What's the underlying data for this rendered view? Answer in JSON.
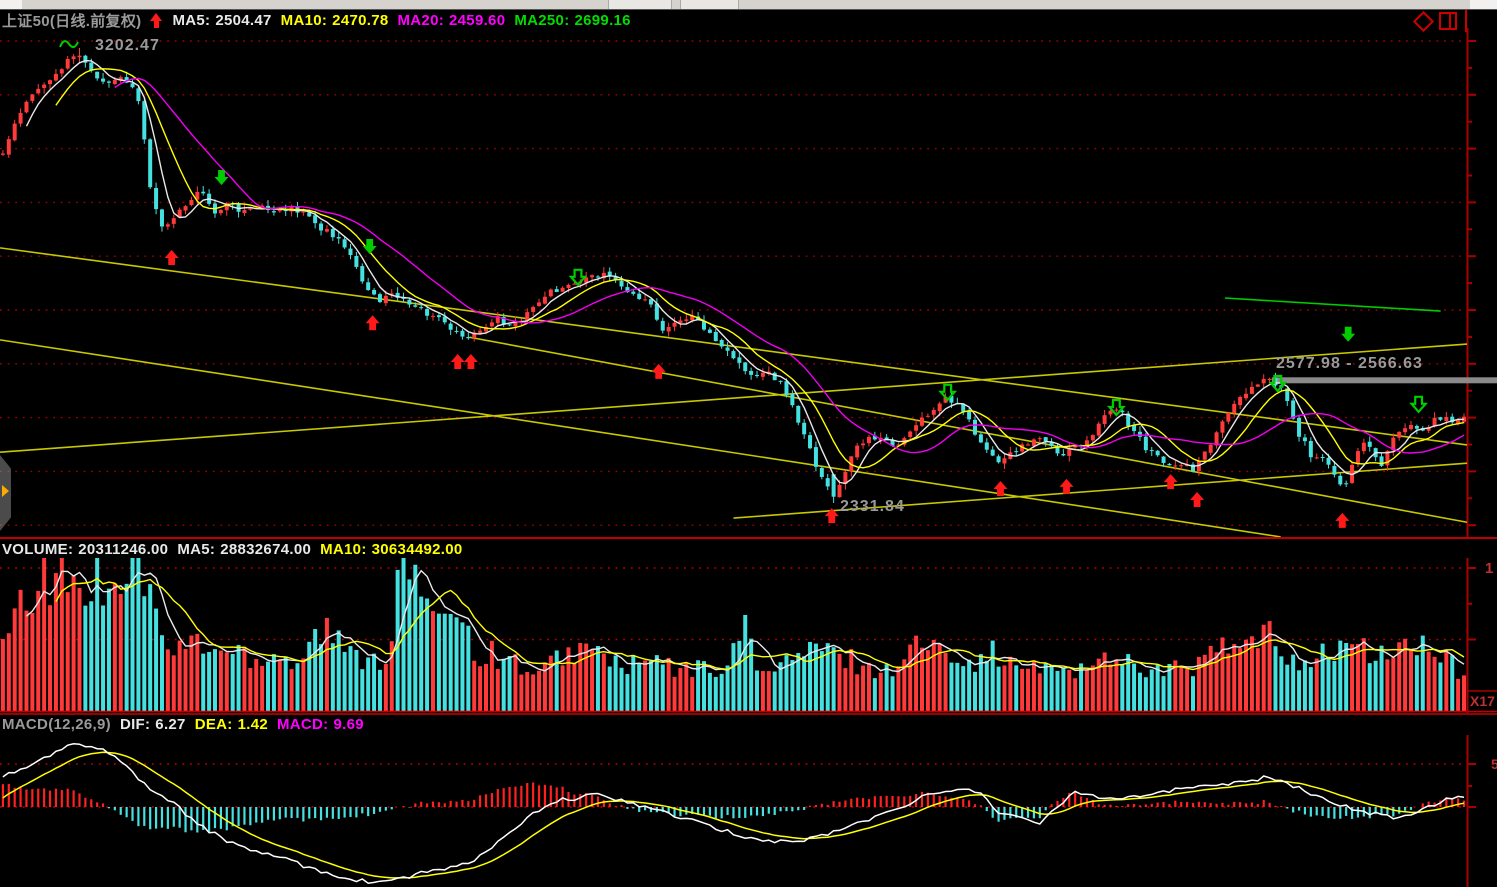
{
  "titlebar": {
    "buttons": [
      "",
      ""
    ]
  },
  "header": {
    "symbol": "上证50(日线.前复权)",
    "trend_icon": "red-up-arrow",
    "ma": [
      {
        "label": "MA5:",
        "value": "2504.47",
        "color": "#e8e8e8"
      },
      {
        "label": "MA10:",
        "value": "2470.78",
        "color": "#ffff00"
      },
      {
        "label": "MA20:",
        "value": "2459.60",
        "color": "#ff00ff"
      },
      {
        "label": "MA250:",
        "value": "2699.16",
        "color": "#00dd00"
      }
    ],
    "corner_icons": [
      "diamond-icon",
      "window-split-icon"
    ]
  },
  "colors": {
    "up": "#ff3a3a",
    "down": "#45e1e1",
    "ma5": "#e8e8e8",
    "ma10": "#ffff00",
    "ma20": "#f000f0",
    "ma250": "#00cc00",
    "grid": "#9b0000",
    "axis": "#aa0000",
    "trendline": "#c8c800",
    "label_gray": "#9a9a9a",
    "arrow_red": "#ff1a1a",
    "arrow_green": "#00cc00",
    "gray_bar": "#8a8a8a"
  },
  "chart_data": {
    "main": {
      "type": "candlestick",
      "high_label": "3202.47",
      "low_label": "2331.84",
      "range_label": "2577.98 - 2566.63",
      "high_price": 3202.47,
      "low_price": 2331.84,
      "price_top": 3240.7,
      "price_bottom": 2266.8,
      "bars": 249,
      "close_anchors": [
        [
          0,
          3007
        ],
        [
          0.01,
          3065
        ],
        [
          0.02,
          3113
        ],
        [
          0.031,
          3141
        ],
        [
          0.041,
          3170
        ],
        [
          0.051,
          3195
        ],
        [
          0.061,
          3151
        ],
        [
          0.072,
          3132
        ],
        [
          0.082,
          3145
        ],
        [
          0.092,
          3122
        ],
        [
          0.102,
          2912
        ],
        [
          0.11,
          2858
        ],
        [
          0.119,
          2883
        ],
        [
          0.128,
          2912
        ],
        [
          0.136,
          2931
        ],
        [
          0.145,
          2892
        ],
        [
          0.155,
          2906
        ],
        [
          0.166,
          2887
        ],
        [
          0.176,
          2900
        ],
        [
          0.186,
          2887
        ],
        [
          0.196,
          2894
        ],
        [
          0.207,
          2889
        ],
        [
          0.217,
          2860
        ],
        [
          0.227,
          2841
        ],
        [
          0.237,
          2812
        ],
        [
          0.247,
          2745
        ],
        [
          0.258,
          2720
        ],
        [
          0.268,
          2728
        ],
        [
          0.278,
          2718
        ],
        [
          0.288,
          2699
        ],
        [
          0.299,
          2682
        ],
        [
          0.309,
          2659
        ],
        [
          0.319,
          2642
        ],
        [
          0.329,
          2670
        ],
        [
          0.339,
          2684
        ],
        [
          0.35,
          2670
        ],
        [
          0.36,
          2699
        ],
        [
          0.37,
          2728
        ],
        [
          0.38,
          2743
        ],
        [
          0.391,
          2756
        ],
        [
          0.401,
          2762
        ],
        [
          0.411,
          2772
        ],
        [
          0.421,
          2753
        ],
        [
          0.431,
          2728
        ],
        [
          0.442,
          2718
        ],
        [
          0.452,
          2661
        ],
        [
          0.462,
          2680
        ],
        [
          0.472,
          2689
        ],
        [
          0.483,
          2661
        ],
        [
          0.493,
          2632
        ],
        [
          0.503,
          2603
        ],
        [
          0.513,
          2575
        ],
        [
          0.523,
          2584
        ],
        [
          0.534,
          2556
        ],
        [
          0.544,
          2489
        ],
        [
          0.554,
          2422
        ],
        [
          0.562,
          2374
        ],
        [
          0.569,
          2343
        ],
        [
          0.576,
          2393
        ],
        [
          0.585,
          2439
        ],
        [
          0.593,
          2458
        ],
        [
          0.601,
          2450
        ],
        [
          0.61,
          2441
        ],
        [
          0.62,
          2469
        ],
        [
          0.631,
          2498
        ],
        [
          0.641,
          2527
        ],
        [
          0.651,
          2531
        ],
        [
          0.661,
          2489
        ],
        [
          0.671,
          2441
        ],
        [
          0.682,
          2403
        ],
        [
          0.692,
          2431
        ],
        [
          0.702,
          2450
        ],
        [
          0.712,
          2454
        ],
        [
          0.723,
          2422
        ],
        [
          0.733,
          2441
        ],
        [
          0.743,
          2446
        ],
        [
          0.753,
          2498
        ],
        [
          0.763,
          2512
        ],
        [
          0.774,
          2469
        ],
        [
          0.784,
          2431
        ],
        [
          0.794,
          2412
        ],
        [
          0.804,
          2408
        ],
        [
          0.815,
          2393
        ],
        [
          0.825,
          2441
        ],
        [
          0.835,
          2489
        ],
        [
          0.845,
          2527
        ],
        [
          0.856,
          2556
        ],
        [
          0.866,
          2569
        ],
        [
          0.876,
          2546
        ],
        [
          0.886,
          2469
        ],
        [
          0.896,
          2422
        ],
        [
          0.907,
          2412
        ],
        [
          0.917,
          2354
        ],
        [
          0.924,
          2412
        ],
        [
          0.93,
          2450
        ],
        [
          0.937,
          2431
        ],
        [
          0.944,
          2403
        ],
        [
          0.951,
          2450
        ],
        [
          0.958,
          2479
        ],
        [
          0.965,
          2489
        ],
        [
          0.971,
          2469
        ],
        [
          0.978,
          2489
        ],
        [
          0.985,
          2493
        ],
        [
          1,
          2491
        ]
      ],
      "trendlines": [
        [
          0,
          2820,
          1,
          2443
        ],
        [
          0,
          2644,
          0.873,
          2267
        ],
        [
          0,
          2429,
          1,
          2636
        ],
        [
          0.5,
          2303,
          1,
          2408
        ],
        [
          0.32,
          2649,
          1,
          2295
        ]
      ],
      "ma250_segment": [
        [
          0.835,
          2724
        ],
        [
          0.982,
          2699
        ]
      ],
      "gray_bar": {
        "start_frac": 0.867,
        "price": 2566.63
      },
      "arrows_red_up": [
        [
          0.117,
          2816
        ],
        [
          0.254,
          2691
        ],
        [
          0.312,
          2617
        ],
        [
          0.321,
          2617
        ],
        [
          0.449,
          2598
        ],
        [
          0.567,
          2322
        ],
        [
          0.682,
          2374
        ],
        [
          0.727,
          2378
        ],
        [
          0.798,
          2387
        ],
        [
          0.816,
          2353
        ],
        [
          0.915,
          2313
        ]
      ],
      "arrows_green_down": [
        [
          0.151,
          2969
        ],
        [
          0.252,
          2837
        ],
        [
          0.919,
          2669
        ]
      ],
      "arrows_green_hollow_down": [
        [
          0.394,
          2778
        ],
        [
          0.646,
          2558
        ],
        [
          0.761,
          2529
        ],
        [
          0.871,
          2575
        ],
        [
          0.967,
          2535
        ]
      ]
    },
    "volume": {
      "type": "bar",
      "header": [
        {
          "label": "VOLUME:",
          "value": "20311246.00",
          "color": "#e8e8e8"
        },
        {
          "label": "MA5:",
          "value": "28832674.00",
          "color": "#e8e8e8"
        },
        {
          "label": "MA10:",
          "value": "30634492.00",
          "color": "#ffff00"
        }
      ],
      "axis_top_label": "1",
      "compress_label": "X17",
      "gridlines_millions": [
        100,
        50
      ],
      "vol_anchors_millions": [
        [
          0,
          43
        ],
        [
          0.01,
          64
        ],
        [
          0.02,
          78
        ],
        [
          0.031,
          92
        ],
        [
          0.037,
          101
        ],
        [
          0.048,
          88
        ],
        [
          0.058,
          81
        ],
        [
          0.068,
          92
        ],
        [
          0.078,
          95
        ],
        [
          0.091,
          99
        ],
        [
          0.099,
          92
        ],
        [
          0.109,
          46
        ],
        [
          0.119,
          39
        ],
        [
          0.13,
          50
        ],
        [
          0.14,
          43
        ],
        [
          0.15,
          39
        ],
        [
          0.16,
          43
        ],
        [
          0.17,
          36
        ],
        [
          0.181,
          39
        ],
        [
          0.191,
          39
        ],
        [
          0.201,
          32
        ],
        [
          0.211,
          50
        ],
        [
          0.222,
          55
        ],
        [
          0.232,
          43
        ],
        [
          0.242,
          36
        ],
        [
          0.252,
          39
        ],
        [
          0.262,
          34
        ],
        [
          0.273,
          99
        ],
        [
          0.283,
          95
        ],
        [
          0.293,
          50
        ],
        [
          0.303,
          85
        ],
        [
          0.314,
          65
        ],
        [
          0.324,
          39
        ],
        [
          0.334,
          39
        ],
        [
          0.344,
          36
        ],
        [
          0.354,
          32
        ],
        [
          0.365,
          22
        ],
        [
          0.375,
          32
        ],
        [
          0.385,
          39
        ],
        [
          0.395,
          43
        ],
        [
          0.406,
          39
        ],
        [
          0.416,
          36
        ],
        [
          0.426,
          29
        ],
        [
          0.436,
          32
        ],
        [
          0.447,
          34
        ],
        [
          0.457,
          29
        ],
        [
          0.467,
          27
        ],
        [
          0.477,
          29
        ],
        [
          0.487,
          30
        ],
        [
          0.498,
          32
        ],
        [
          0.508,
          60
        ],
        [
          0.518,
          29
        ],
        [
          0.528,
          25
        ],
        [
          0.538,
          36
        ],
        [
          0.549,
          39
        ],
        [
          0.559,
          43
        ],
        [
          0.569,
          37
        ],
        [
          0.579,
          36
        ],
        [
          0.59,
          30
        ],
        [
          0.6,
          27
        ],
        [
          0.61,
          29
        ],
        [
          0.62,
          43
        ],
        [
          0.631,
          46
        ],
        [
          0.641,
          39
        ],
        [
          0.651,
          44
        ],
        [
          0.661,
          36
        ],
        [
          0.671,
          32
        ],
        [
          0.678,
          43
        ],
        [
          0.688,
          30
        ],
        [
          0.702,
          30
        ],
        [
          0.712,
          27
        ],
        [
          0.723,
          30
        ],
        [
          0.733,
          29
        ],
        [
          0.743,
          27
        ],
        [
          0.753,
          36
        ],
        [
          0.763,
          39
        ],
        [
          0.774,
          32
        ],
        [
          0.784,
          29
        ],
        [
          0.794,
          27
        ],
        [
          0.804,
          29
        ],
        [
          0.815,
          30
        ],
        [
          0.825,
          36
        ],
        [
          0.835,
          44
        ],
        [
          0.845,
          41
        ],
        [
          0.856,
          46
        ],
        [
          0.866,
          51
        ],
        [
          0.876,
          39
        ],
        [
          0.886,
          36
        ],
        [
          0.896,
          34
        ],
        [
          0.907,
          39
        ],
        [
          0.917,
          46
        ],
        [
          0.927,
          43
        ],
        [
          0.937,
          37
        ],
        [
          0.947,
          39
        ],
        [
          0.958,
          43
        ],
        [
          0.968,
          45
        ],
        [
          0.978,
          39
        ],
        [
          0.988,
          36
        ],
        [
          1,
          20
        ]
      ]
    },
    "macd": {
      "type": "macd",
      "header": [
        {
          "label": "MACD(12,26,9)",
          "value": "",
          "color": "#cccccc"
        },
        {
          "label": "DIF:",
          "value": "6.27",
          "color": "#e8e8e8"
        },
        {
          "label": "DEA:",
          "value": "1.42",
          "color": "#ffff00"
        },
        {
          "label": "MACD:",
          "value": "9.69",
          "color": "#ff00ff"
        }
      ],
      "axis_partial_label": "5",
      "last_values": {
        "dif": 6.27,
        "dea": 1.42,
        "macd": 9.69
      },
      "dif_anchors": [
        [
          0,
          17
        ],
        [
          0.027,
          27
        ],
        [
          0.051,
          37
        ],
        [
          0.075,
          31
        ],
        [
          0.097,
          13
        ],
        [
          0.118,
          1
        ],
        [
          0.136,
          -11
        ],
        [
          0.159,
          -22
        ],
        [
          0.182,
          -27
        ],
        [
          0.204,
          -33
        ],
        [
          0.227,
          -39
        ],
        [
          0.25,
          -43
        ],
        [
          0.273,
          -41
        ],
        [
          0.295,
          -36
        ],
        [
          0.318,
          -33
        ],
        [
          0.341,
          -19
        ],
        [
          0.361,
          -5
        ],
        [
          0.382,
          4
        ],
        [
          0.409,
          7
        ],
        [
          0.436,
          1
        ],
        [
          0.464,
          -6
        ],
        [
          0.491,
          -13
        ],
        [
          0.518,
          -19
        ],
        [
          0.545,
          -20
        ],
        [
          0.573,
          -13
        ],
        [
          0.6,
          -5
        ],
        [
          0.627,
          5
        ],
        [
          0.648,
          10
        ],
        [
          0.668,
          9
        ],
        [
          0.682,
          -3
        ],
        [
          0.709,
          -10
        ],
        [
          0.733,
          9
        ],
        [
          0.757,
          5
        ],
        [
          0.784,
          7
        ],
        [
          0.811,
          11
        ],
        [
          0.842,
          14
        ],
        [
          0.866,
          17
        ],
        [
          0.886,
          11
        ],
        [
          0.907,
          4
        ],
        [
          0.927,
          -2
        ],
        [
          0.951,
          -6
        ],
        [
          0.968,
          -3
        ],
        [
          0.985,
          4
        ],
        [
          1,
          6.3
        ]
      ]
    }
  }
}
